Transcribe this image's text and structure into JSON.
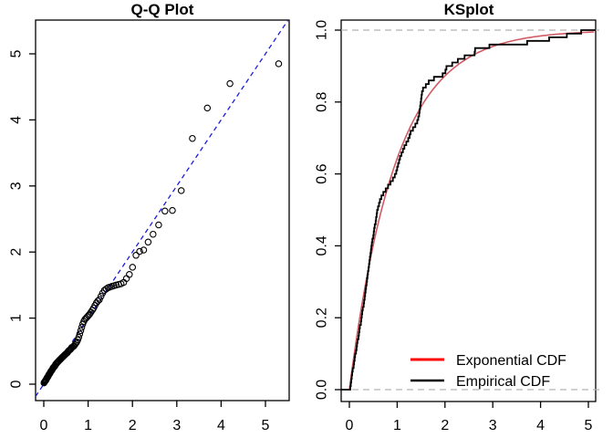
{
  "figure": {
    "background": "#ffffff",
    "panel_count": 2
  },
  "chart_data": [
    {
      "id": "qq",
      "type": "scatter",
      "title": "Q-Q Plot",
      "xlabel": "",
      "ylabel": "",
      "x_axis": {
        "ticks": [
          0,
          1,
          2,
          3,
          4,
          5
        ],
        "range": [
          -0.21,
          5.51
        ]
      },
      "y_axis": {
        "ticks": [
          0,
          1,
          2,
          3,
          4,
          5
        ],
        "range": [
          -0.25,
          5.51
        ]
      },
      "n": 100,
      "theoretical_quantiles_rule": "-ln(1 - (i - 0.5)/100) for i = 1..100 (exponential ppoints)",
      "sample_quantiles_sorted": [
        0.02,
        0.03,
        0.04,
        0.05,
        0.06,
        0.07,
        0.09,
        0.1,
        0.11,
        0.12,
        0.14,
        0.15,
        0.16,
        0.17,
        0.19,
        0.2,
        0.21,
        0.22,
        0.24,
        0.25,
        0.26,
        0.27,
        0.28,
        0.3,
        0.31,
        0.32,
        0.33,
        0.34,
        0.35,
        0.36,
        0.37,
        0.38,
        0.39,
        0.4,
        0.41,
        0.42,
        0.43,
        0.44,
        0.45,
        0.46,
        0.47,
        0.48,
        0.5,
        0.51,
        0.52,
        0.53,
        0.55,
        0.56,
        0.57,
        0.58,
        0.6,
        0.62,
        0.64,
        0.67,
        0.71,
        0.76,
        0.81,
        0.86,
        0.91,
        0.95,
        0.98,
        1.0,
        1.02,
        1.04,
        1.06,
        1.09,
        1.12,
        1.15,
        1.19,
        1.23,
        1.26,
        1.28,
        1.33,
        1.38,
        1.42,
        1.44,
        1.46,
        1.47,
        1.48,
        1.49,
        1.5,
        1.51,
        1.52,
        1.54,
        1.6,
        1.66,
        1.77,
        1.95,
        2.01,
        2.03,
        2.15,
        2.27,
        2.41,
        2.62,
        2.63,
        2.93,
        3.72,
        4.18,
        4.55,
        4.85
      ],
      "point_style": {
        "shape": "open-circle",
        "color": "#000000"
      },
      "reference_line": {
        "intercept": 0,
        "slope": 1,
        "style": "dashed",
        "color": "#1c1ce0"
      },
      "grid": false
    },
    {
      "id": "ks",
      "type": "line",
      "title": "KSplot",
      "xlabel": "",
      "ylabel": "",
      "x_axis": {
        "ticks": [
          0,
          1,
          2,
          3,
          4,
          5
        ],
        "range": [
          -0.17,
          5.16
        ]
      },
      "y_axis": {
        "ticks": [
          "0.0",
          "0.2",
          "0.4",
          "0.6",
          "0.8",
          "1.0"
        ],
        "range": [
          -0.04,
          1.04
        ]
      },
      "series": [
        {
          "name": "Exponential CDF",
          "kind": "function",
          "formula": "1 - exp(-rate * x)",
          "rate": 1.03,
          "curve_color": "#d25a64",
          "legend_color": "#ff0000"
        },
        {
          "name": "Empirical CDF",
          "kind": "ecdf-step",
          "color": "#000000",
          "note": "empirical CDF of the same 100 sorted sample values as the Q-Q plot"
        }
      ],
      "guide_lines": [
        {
          "y": 0.0,
          "style": "dashed",
          "color": "#b3b3b3"
        },
        {
          "y": 1.0,
          "style": "dashed",
          "color": "#b3b3b3"
        }
      ],
      "legend": {
        "position": "bottom-right",
        "entries": [
          "Exponential CDF",
          "Empirical CDF"
        ]
      },
      "grid": false
    }
  ]
}
